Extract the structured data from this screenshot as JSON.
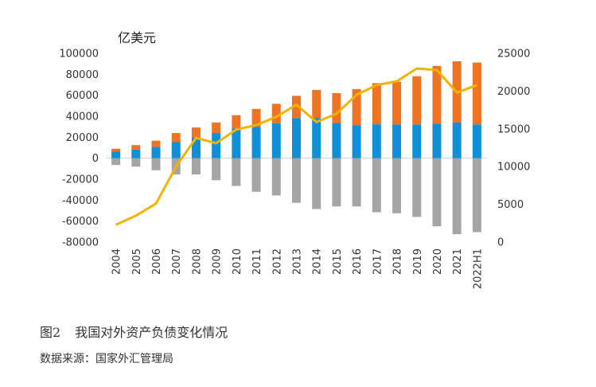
{
  "unit_label": "亿美元",
  "caption": {
    "number": "图2",
    "text": "我国对外资产负债变化情况"
  },
  "source": "数据来源：国家外汇管理局",
  "colors": {
    "blue": "#0e8fd6",
    "orange": "#ee7322",
    "gray": "#a5a5a5",
    "line": "#f5b300"
  },
  "chart_data": {
    "type": "bar",
    "categories": [
      "2004",
      "2005",
      "2006",
      "2007",
      "2008",
      "2009",
      "2010",
      "2011",
      "2012",
      "2013",
      "2014",
      "2015",
      "2016",
      "2017",
      "2018",
      "2019",
      "2020",
      "2021",
      "2022H1"
    ],
    "left_axis": {
      "ylim": [
        -80000,
        100000
      ],
      "ticks": [
        100000,
        80000,
        60000,
        40000,
        20000,
        0,
        -20000,
        -40000,
        -60000,
        -80000
      ]
    },
    "right_axis": {
      "ylim": [
        0,
        25000
      ],
      "ticks": [
        25000,
        20000,
        15000,
        10000,
        5000,
        0
      ]
    },
    "series": [
      {
        "name": "blue",
        "type": "stacked-bar",
        "axis": "left",
        "values": [
          6200,
          8200,
          10700,
          15300,
          19500,
          24000,
          28500,
          30000,
          33400,
          38300,
          38400,
          33500,
          31500,
          32300,
          32100,
          32200,
          33000,
          33900,
          32200
        ]
      },
      {
        "name": "orange",
        "type": "stacked-bar",
        "axis": "left",
        "values": [
          2800,
          4300,
          6000,
          8700,
          9800,
          10000,
          12500,
          17000,
          18500,
          21200,
          26700,
          28600,
          34500,
          39300,
          40800,
          46000,
          55000,
          58500,
          59000
        ]
      },
      {
        "name": "gray",
        "type": "bar",
        "axis": "left",
        "values": [
          -6500,
          -8000,
          -11500,
          -15500,
          -15500,
          -21000,
          -26500,
          -32000,
          -35500,
          -42500,
          -48500,
          -46000,
          -46000,
          -51500,
          -52500,
          -56000,
          -65000,
          -72500,
          -70500
        ]
      },
      {
        "name": "line",
        "type": "line",
        "axis": "right",
        "values": [
          2300,
          3500,
          5100,
          10000,
          13800,
          13100,
          14900,
          15500,
          16600,
          18200,
          15900,
          17000,
          19500,
          20800,
          21300,
          23000,
          22800,
          19800,
          20800
        ]
      }
    ]
  }
}
